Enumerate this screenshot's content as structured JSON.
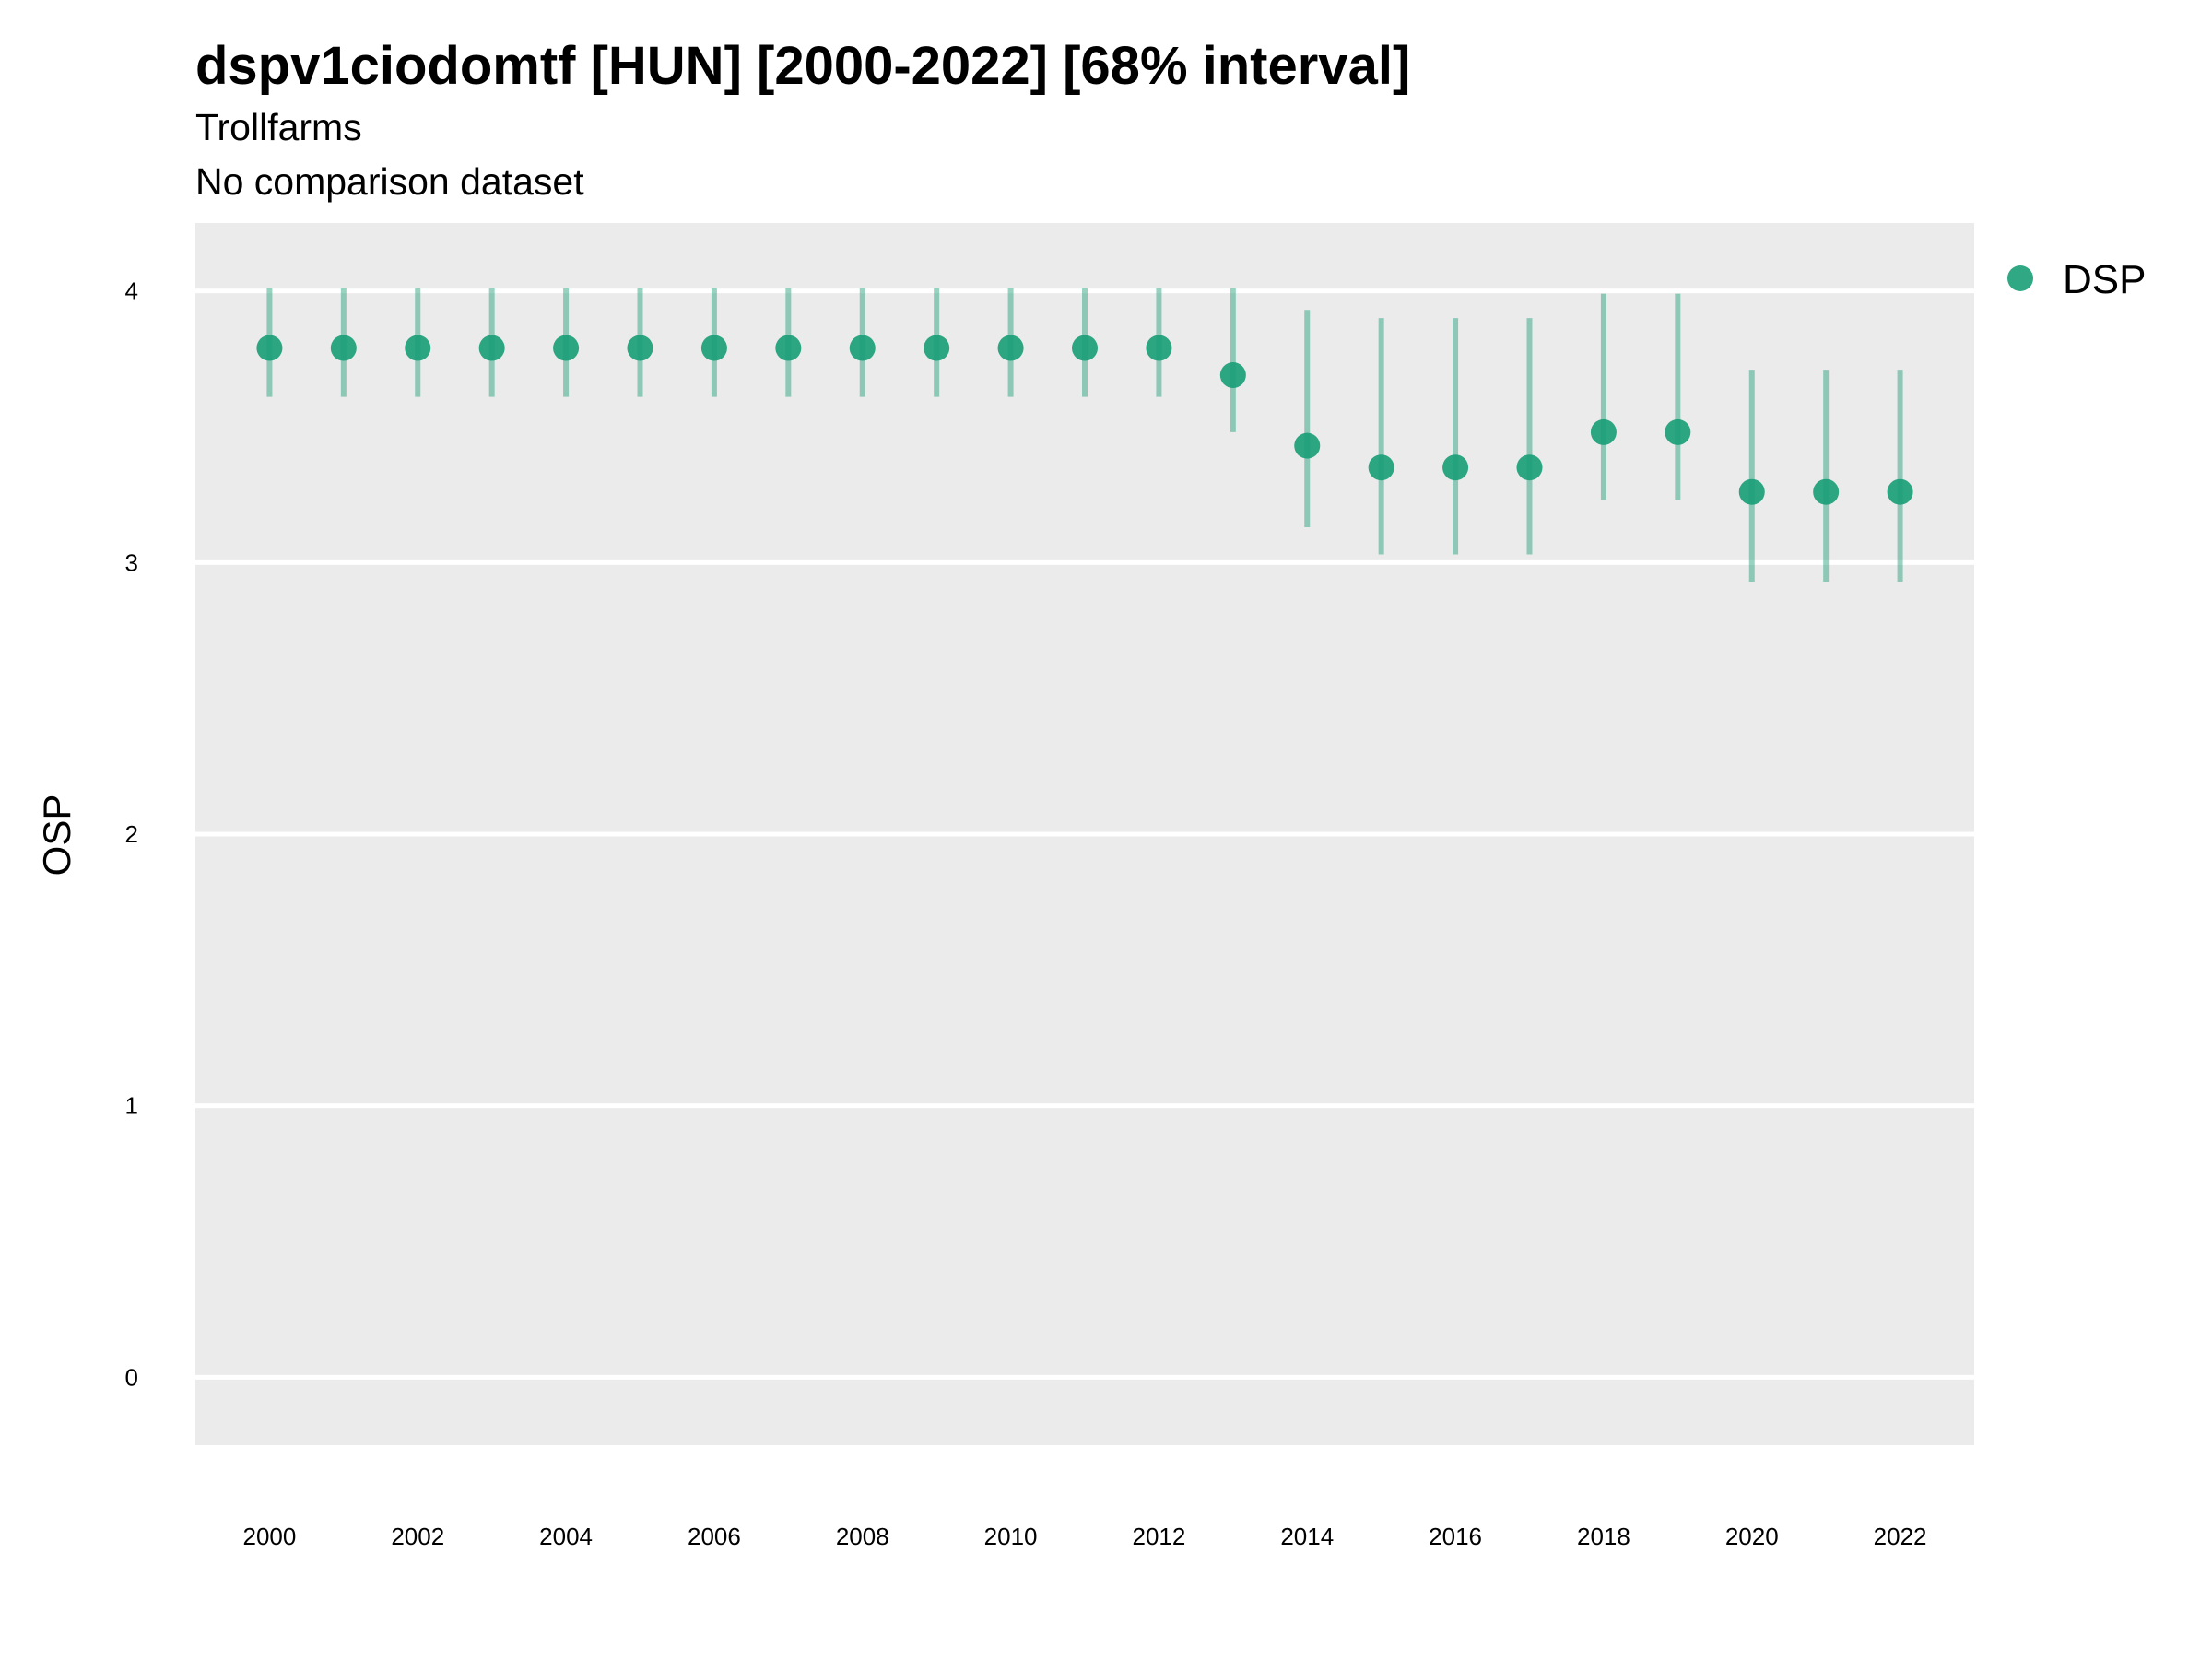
{
  "chart_data": {
    "type": "scatter",
    "title": "dspv1ciodomtf [HUN] [2000-2022] [68% interval]",
    "subtitle": "Trollfarms",
    "caption": "No comparison dataset",
    "xlabel": "",
    "ylabel": "OSP",
    "ylim": [
      -0.25,
      4.25
    ],
    "xlim": [
      1999,
      2023
    ],
    "y_ticks": [
      "0",
      "1",
      "2",
      "3",
      "4"
    ],
    "x_ticks": [
      "2000",
      "2002",
      "2004",
      "2006",
      "2008",
      "2010",
      "2012",
      "2014",
      "2016",
      "2018",
      "2020",
      "2022"
    ],
    "grid": true,
    "legend_position": "top-right",
    "colors": {
      "series": "#1b9e77",
      "panel": "#ebebeb",
      "grid": "#ffffff"
    },
    "series": [
      {
        "name": "DSP",
        "x": [
          2000,
          2001,
          2002,
          2003,
          2004,
          2005,
          2006,
          2007,
          2008,
          2009,
          2010,
          2011,
          2012,
          2013,
          2014,
          2015,
          2016,
          2017,
          2018,
          2019,
          2020,
          2021,
          2022
        ],
        "y": [
          3.79,
          3.79,
          3.79,
          3.79,
          3.79,
          3.79,
          3.79,
          3.79,
          3.79,
          3.79,
          3.79,
          3.79,
          3.79,
          3.69,
          3.43,
          3.35,
          3.35,
          3.35,
          3.48,
          3.48,
          3.26,
          3.26,
          3.26
        ],
        "lower": [
          3.61,
          3.61,
          3.61,
          3.61,
          3.61,
          3.61,
          3.61,
          3.61,
          3.61,
          3.61,
          3.61,
          3.61,
          3.61,
          3.48,
          3.13,
          3.03,
          3.03,
          3.03,
          3.23,
          3.23,
          2.93,
          2.93,
          2.93
        ],
        "upper": [
          4.01,
          4.01,
          4.01,
          4.01,
          4.01,
          4.01,
          4.01,
          4.01,
          4.01,
          4.01,
          4.01,
          4.01,
          4.01,
          4.01,
          3.93,
          3.9,
          3.9,
          3.9,
          3.99,
          3.99,
          3.71,
          3.71,
          3.71
        ]
      }
    ]
  }
}
